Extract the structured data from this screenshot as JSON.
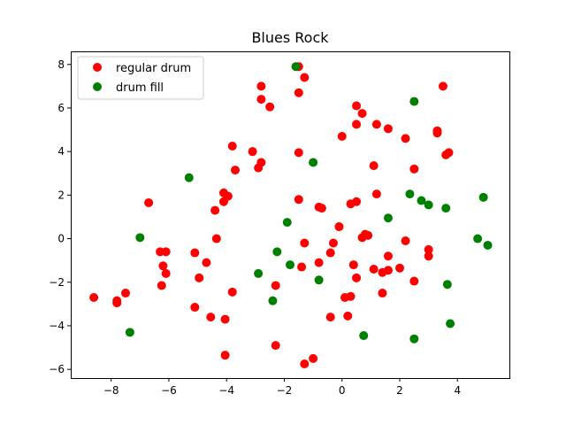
{
  "chart_data": {
    "type": "scatter",
    "title": "Blues Rock",
    "xlabel": "",
    "ylabel": "",
    "xlim": [
      -9.4,
      5.8
    ],
    "ylim": [
      -6.4,
      8.6
    ],
    "xticks": [
      -8,
      -6,
      -4,
      -2,
      0,
      2,
      4
    ],
    "yticks": [
      -6,
      -4,
      -2,
      0,
      2,
      4,
      6,
      8
    ],
    "xtick_labels": [
      "−8",
      "−6",
      "−4",
      "−2",
      "0",
      "2",
      "4"
    ],
    "ytick_labels": [
      "−6",
      "−4",
      "−2",
      "0",
      "2",
      "4",
      "6",
      "8"
    ],
    "grid": false,
    "legend_position": "top-left",
    "series": [
      {
        "name": "regular drum",
        "color": "#ff0000",
        "points": [
          [
            -1.5,
            7.9
          ],
          [
            -1.3,
            7.4
          ],
          [
            -1.5,
            6.7
          ],
          [
            -2.8,
            7.0
          ],
          [
            -2.8,
            6.4
          ],
          [
            -2.5,
            6.05
          ],
          [
            3.5,
            7.0
          ],
          [
            0.5,
            6.1
          ],
          [
            0.7,
            5.75
          ],
          [
            0.5,
            5.25
          ],
          [
            1.2,
            5.25
          ],
          [
            1.6,
            5.05
          ],
          [
            2.2,
            4.6
          ],
          [
            3.3,
            4.95
          ],
          [
            3.3,
            4.85
          ],
          [
            3.6,
            3.85
          ],
          [
            3.7,
            3.95
          ],
          [
            2.5,
            3.2
          ],
          [
            1.1,
            3.35
          ],
          [
            0.0,
            4.7
          ],
          [
            -1.5,
            3.95
          ],
          [
            -3.1,
            4.0
          ],
          [
            -3.8,
            4.25
          ],
          [
            -2.9,
            3.25
          ],
          [
            -2.8,
            3.5
          ],
          [
            -3.7,
            3.15
          ],
          [
            -3.95,
            1.95
          ],
          [
            -4.1,
            2.1
          ],
          [
            -4.1,
            1.7
          ],
          [
            -4.4,
            1.3
          ],
          [
            -6.7,
            1.65
          ],
          [
            -1.5,
            1.8
          ],
          [
            -0.8,
            1.45
          ],
          [
            -0.7,
            1.4
          ],
          [
            0.3,
            1.6
          ],
          [
            0.5,
            1.7
          ],
          [
            1.2,
            2.05
          ],
          [
            -0.1,
            0.55
          ],
          [
            0.7,
            0.05
          ],
          [
            0.8,
            0.2
          ],
          [
            0.9,
            0.15
          ],
          [
            2.2,
            -0.1
          ],
          [
            3.0,
            -0.5
          ],
          [
            3.0,
            -0.8
          ],
          [
            2.5,
            -1.95
          ],
          [
            1.6,
            -0.8
          ],
          [
            1.6,
            -1.45
          ],
          [
            1.4,
            -1.55
          ],
          [
            1.1,
            -1.4
          ],
          [
            2.0,
            -1.35
          ],
          [
            1.4,
            -2.5
          ],
          [
            0.4,
            -1.2
          ],
          [
            0.5,
            -1.8
          ],
          [
            0.3,
            -2.65
          ],
          [
            0.1,
            -2.7
          ],
          [
            -0.3,
            -0.2
          ],
          [
            -0.4,
            -0.65
          ],
          [
            -0.8,
            -1.1
          ],
          [
            -1.3,
            -0.2
          ],
          [
            -1.4,
            -1.3
          ],
          [
            0.2,
            -3.55
          ],
          [
            -0.4,
            -3.6
          ],
          [
            -1.0,
            -5.5
          ],
          [
            -1.3,
            -5.75
          ],
          [
            -2.3,
            -4.9
          ],
          [
            -2.3,
            -2.15
          ],
          [
            -3.8,
            -2.45
          ],
          [
            -4.05,
            -3.7
          ],
          [
            -4.05,
            -5.35
          ],
          [
            -4.55,
            -3.6
          ],
          [
            -4.7,
            -1.1
          ],
          [
            -4.95,
            -1.8
          ],
          [
            -5.1,
            -0.65
          ],
          [
            -5.1,
            -3.15
          ],
          [
            -4.35,
            0.0
          ],
          [
            -6.1,
            -0.6
          ],
          [
            -6.2,
            -1.25
          ],
          [
            -6.1,
            -1.6
          ],
          [
            -6.3,
            -0.6
          ],
          [
            -6.25,
            -2.15
          ],
          [
            -7.5,
            -2.5
          ],
          [
            -7.8,
            -2.85
          ],
          [
            -7.8,
            -2.95
          ],
          [
            -8.6,
            -2.7
          ]
        ]
      },
      {
        "name": "drum fill",
        "color": "#008000",
        "points": [
          [
            -1.6,
            7.9
          ],
          [
            2.5,
            6.3
          ],
          [
            -1.0,
            3.5
          ],
          [
            -5.3,
            2.8
          ],
          [
            2.35,
            2.05
          ],
          [
            2.75,
            1.75
          ],
          [
            3.0,
            1.55
          ],
          [
            3.6,
            1.4
          ],
          [
            4.9,
            1.9
          ],
          [
            1.6,
            0.95
          ],
          [
            -1.9,
            0.75
          ],
          [
            -7.0,
            0.05
          ],
          [
            4.7,
            0.0
          ],
          [
            5.05,
            -0.3
          ],
          [
            -2.25,
            -0.6
          ],
          [
            -1.8,
            -1.2
          ],
          [
            -2.9,
            -1.6
          ],
          [
            -0.8,
            -1.9
          ],
          [
            3.65,
            -2.1
          ],
          [
            -2.4,
            -2.85
          ],
          [
            3.75,
            -3.9
          ],
          [
            0.75,
            -4.45
          ],
          [
            2.5,
            -4.6
          ],
          [
            -7.35,
            -4.3
          ]
        ]
      }
    ]
  }
}
